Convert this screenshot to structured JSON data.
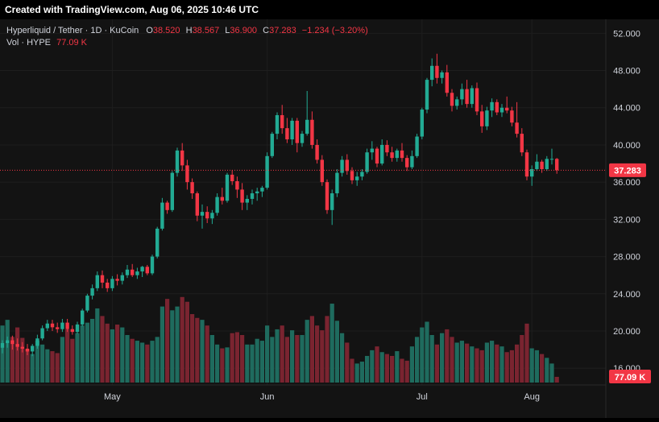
{
  "header": {
    "created": "Created with TradingView.com, Aug 06, 2025 10:46 UTC"
  },
  "legend": {
    "symbol": "Hyperliquid / Tether · 1D · KuCoin",
    "o_label": "O",
    "o": "38.520",
    "h_label": "H",
    "h": "38.567",
    "l_label": "L",
    "l": "36.900",
    "c_label": "C",
    "c": "37.283",
    "chg": "−1.234 (−3.20%)",
    "vol_label": "Vol · HYPE",
    "vol": "77.09 K"
  },
  "colors": {
    "up": "#22ab94",
    "down": "#f23645",
    "vol_up": "#1f6b5e",
    "vol_down": "#7a2430",
    "grid": "#1e1e1e",
    "text": "#d1d4dc"
  },
  "chart_data": {
    "type": "candlestick",
    "price_axis": {
      "ticks": [
        "52.000",
        "48.000",
        "44.000",
        "40.000",
        "36.000",
        "32.000",
        "28.000",
        "24.000",
        "20.000",
        "16.000"
      ],
      "range": [
        14.2,
        53.5
      ]
    },
    "time_axis": {
      "labels": [
        "May",
        "Jun",
        "Jul",
        "Aug"
      ]
    },
    "last_price_label": "37.283",
    "last_volume_label": "77.09 K",
    "candles": [
      [
        18.2,
        19.0,
        17.6,
        18.7
      ],
      [
        18.7,
        19.4,
        18.2,
        19.0
      ],
      [
        19.0,
        19.5,
        18.0,
        18.6
      ],
      [
        18.6,
        19.2,
        17.9,
        18.3
      ],
      [
        18.3,
        18.8,
        17.7,
        18.1
      ],
      [
        18.1,
        18.6,
        17.4,
        17.8
      ],
      [
        17.8,
        18.6,
        17.3,
        18.4
      ],
      [
        18.4,
        19.6,
        18.1,
        19.2
      ],
      [
        19.2,
        20.6,
        19.0,
        20.3
      ],
      [
        20.3,
        21.2,
        20.0,
        20.8
      ],
      [
        20.8,
        21.2,
        20.0,
        20.4
      ],
      [
        20.4,
        20.9,
        19.8,
        20.2
      ],
      [
        20.2,
        21.3,
        19.9,
        20.9
      ],
      [
        20.9,
        21.3,
        19.9,
        20.2
      ],
      [
        20.2,
        20.6,
        19.6,
        19.9
      ],
      [
        19.9,
        21.0,
        19.7,
        20.7
      ],
      [
        20.7,
        22.4,
        20.5,
        22.2
      ],
      [
        22.2,
        24.0,
        22.0,
        23.8
      ],
      [
        23.8,
        25.0,
        23.4,
        24.6
      ],
      [
        24.6,
        26.4,
        24.3,
        26.0
      ],
      [
        26.0,
        26.5,
        24.6,
        25.2
      ],
      [
        25.2,
        25.6,
        24.2,
        24.6
      ],
      [
        24.6,
        25.9,
        24.3,
        25.6
      ],
      [
        25.6,
        26.1,
        24.9,
        25.4
      ],
      [
        25.4,
        26.3,
        25.0,
        26.0
      ],
      [
        26.0,
        27.1,
        25.7,
        26.6
      ],
      [
        26.6,
        27.2,
        25.8,
        26.0
      ],
      [
        26.0,
        26.8,
        25.6,
        26.4
      ],
      [
        26.4,
        27.0,
        25.8,
        26.9
      ],
      [
        26.9,
        27.1,
        26.0,
        26.2
      ],
      [
        26.2,
        28.2,
        26.0,
        28.0
      ],
      [
        28.0,
        31.2,
        27.8,
        31.0
      ],
      [
        31.0,
        34.3,
        30.8,
        33.8
      ],
      [
        33.8,
        34.0,
        32.6,
        33.0
      ],
      [
        33.0,
        37.2,
        32.8,
        37.0
      ],
      [
        37.0,
        39.7,
        36.6,
        39.4
      ],
      [
        39.4,
        40.2,
        37.2,
        37.8
      ],
      [
        37.8,
        38.4,
        35.2,
        36.0
      ],
      [
        36.0,
        36.4,
        34.2,
        34.8
      ],
      [
        34.8,
        35.0,
        31.8,
        32.4
      ],
      [
        32.4,
        33.6,
        31.0,
        32.8
      ],
      [
        32.8,
        33.4,
        31.6,
        32.1
      ],
      [
        32.1,
        33.0,
        31.5,
        32.7
      ],
      [
        32.7,
        34.8,
        32.4,
        34.4
      ],
      [
        34.4,
        35.4,
        33.6,
        34.0
      ],
      [
        34.0,
        37.0,
        33.8,
        36.8
      ],
      [
        36.8,
        37.3,
        35.7,
        36.1
      ],
      [
        36.1,
        36.6,
        34.3,
        35.2
      ],
      [
        35.2,
        35.9,
        33.0,
        33.8
      ],
      [
        33.8,
        34.6,
        33.0,
        34.2
      ],
      [
        34.2,
        35.2,
        33.6,
        34.8
      ],
      [
        34.8,
        35.4,
        34.0,
        35.0
      ],
      [
        35.0,
        35.6,
        34.4,
        35.4
      ],
      [
        35.4,
        39.2,
        35.2,
        38.8
      ],
      [
        38.8,
        41.4,
        38.6,
        41.2
      ],
      [
        41.2,
        43.5,
        40.6,
        43.2
      ],
      [
        43.2,
        44.3,
        41.2,
        41.8
      ],
      [
        41.8,
        42.9,
        40.2,
        40.6
      ],
      [
        40.6,
        42.9,
        40.0,
        42.6
      ],
      [
        42.6,
        42.9,
        39.2,
        40.2
      ],
      [
        40.2,
        41.5,
        39.8,
        41.2
      ],
      [
        41.2,
        45.8,
        41.0,
        42.7
      ],
      [
        42.7,
        43.6,
        39.6,
        40.0
      ],
      [
        40.0,
        40.6,
        38.0,
        38.4
      ],
      [
        38.4,
        38.9,
        35.6,
        36.0
      ],
      [
        36.0,
        36.3,
        32.6,
        33.0
      ],
      [
        33.0,
        35.2,
        31.4,
        34.8
      ],
      [
        34.8,
        37.4,
        34.4,
        37.0
      ],
      [
        37.0,
        38.8,
        36.6,
        38.4
      ],
      [
        38.4,
        39.0,
        36.8,
        37.2
      ],
      [
        37.2,
        37.6,
        35.8,
        36.2
      ],
      [
        36.2,
        37.1,
        35.6,
        36.6
      ],
      [
        36.6,
        37.4,
        36.2,
        37.1
      ],
      [
        37.1,
        39.6,
        36.9,
        39.2
      ],
      [
        39.2,
        40.4,
        38.4,
        39.6
      ],
      [
        39.6,
        39.8,
        37.6,
        38.0
      ],
      [
        38.0,
        40.6,
        37.8,
        40.0
      ],
      [
        40.0,
        40.5,
        38.8,
        39.2
      ],
      [
        39.2,
        39.8,
        38.2,
        38.6
      ],
      [
        38.6,
        39.6,
        38.2,
        39.4
      ],
      [
        39.4,
        40.2,
        38.2,
        38.6
      ],
      [
        38.6,
        38.9,
        37.2,
        37.6
      ],
      [
        37.6,
        39.4,
        37.4,
        38.8
      ],
      [
        38.8,
        41.2,
        38.6,
        40.9
      ],
      [
        40.9,
        44.0,
        40.6,
        43.8
      ],
      [
        43.8,
        47.2,
        43.4,
        47.0
      ],
      [
        47.0,
        49.3,
        46.3,
        48.5
      ],
      [
        48.5,
        49.8,
        46.6,
        47.2
      ],
      [
        47.2,
        48.0,
        46.6,
        47.8
      ],
      [
        47.8,
        48.6,
        45.2,
        45.6
      ],
      [
        45.6,
        46.0,
        43.6,
        44.2
      ],
      [
        44.2,
        45.2,
        43.8,
        44.9
      ],
      [
        44.9,
        46.6,
        44.3,
        46.0
      ],
      [
        46.0,
        47.0,
        44.0,
        44.4
      ],
      [
        44.4,
        46.4,
        44.0,
        46.1
      ],
      [
        46.1,
        46.7,
        43.2,
        43.6
      ],
      [
        43.6,
        44.3,
        41.3,
        42.0
      ],
      [
        42.0,
        44.1,
        41.6,
        43.7
      ],
      [
        43.7,
        45.0,
        43.0,
        44.6
      ],
      [
        44.6,
        44.9,
        43.2,
        43.5
      ],
      [
        43.5,
        44.4,
        43.0,
        44.0
      ],
      [
        44.0,
        45.2,
        43.4,
        43.7
      ],
      [
        43.7,
        44.1,
        42.0,
        42.4
      ],
      [
        42.4,
        44.6,
        40.8,
        41.2
      ],
      [
        41.2,
        41.8,
        38.8,
        39.2
      ],
      [
        39.2,
        39.5,
        36.2,
        36.6
      ],
      [
        36.6,
        37.8,
        35.6,
        37.4
      ],
      [
        37.4,
        39.0,
        37.2,
        38.2
      ],
      [
        38.2,
        38.4,
        37.0,
        37.4
      ],
      [
        37.4,
        38.8,
        37.2,
        38.5
      ],
      [
        38.5,
        39.6,
        37.9,
        38.5
      ],
      [
        38.5,
        38.6,
        36.9,
        37.28
      ]
    ],
    "volume_scale_max": 100,
    "volumes": [
      60,
      66,
      48,
      58,
      47,
      35,
      30,
      44,
      40,
      35,
      33,
      31,
      48,
      56,
      46,
      52,
      60,
      63,
      67,
      78,
      70,
      62,
      56,
      61,
      58,
      50,
      46,
      44,
      42,
      40,
      44,
      48,
      80,
      88,
      76,
      80,
      90,
      85,
      72,
      68,
      66,
      60,
      50,
      40,
      36,
      37,
      52,
      53,
      50,
      40,
      40,
      46,
      44,
      60,
      48,
      56,
      60,
      48,
      55,
      50,
      50,
      66,
      70,
      60,
      55,
      70,
      83,
      65,
      52,
      42,
      25,
      20,
      22,
      28,
      34,
      38,
      32,
      30,
      28,
      33,
      25,
      23,
      38,
      48,
      58,
      64,
      50,
      40,
      52,
      56,
      48,
      42,
      44,
      41,
      38,
      36,
      34,
      42,
      44,
      40,
      38,
      32,
      34,
      40,
      50,
      62,
      36,
      34,
      30,
      26,
      20,
      6
    ]
  }
}
